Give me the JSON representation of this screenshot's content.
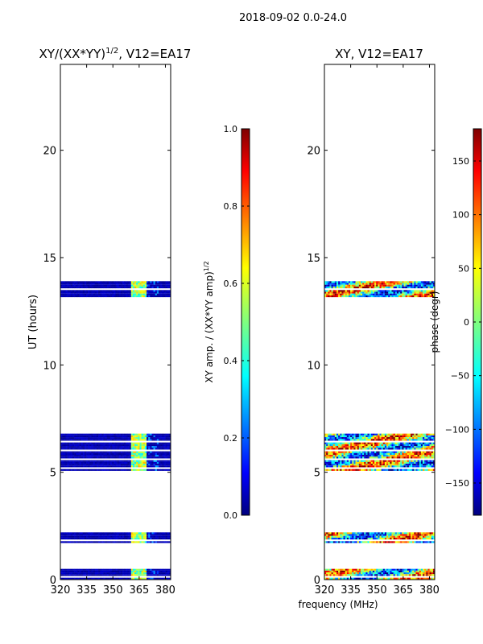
{
  "figure_title": "2018-09-02 0.0-24.0",
  "shared_xlabel": "frequency (MHz)",
  "chart_data": [
    {
      "type": "heatmap",
      "title": "XY/(XX*YY)",
      "title_sup": "1/2",
      "title_suffix": ", V12=EA17",
      "xlabel": "",
      "ylabel": "UT (hours)",
      "xlim": [
        320,
        383
      ],
      "ylim": [
        0,
        24
      ],
      "xticks": [
        320,
        335,
        350,
        365,
        380
      ],
      "yticks": [
        0,
        5,
        10,
        15,
        20
      ],
      "time_blocks_hours": [
        [
          0.0,
          0.5
        ],
        [
          1.7,
          2.2
        ],
        [
          5.1,
          6.8
        ],
        [
          13.2,
          13.9
        ]
      ],
      "colorbar": {
        "label": "XY amp. / (XX*YY amp)",
        "label_sup": "1/2",
        "range": [
          0.0,
          1.0
        ],
        "ticks": [
          "0.0",
          "0.2",
          "0.4",
          "0.6",
          "0.8",
          "1.0"
        ],
        "colormap": "jet"
      }
    },
    {
      "type": "heatmap",
      "title": "XY, V12=EA17",
      "xlabel": "frequency (MHz)",
      "ylabel": "",
      "xlim": [
        320,
        383
      ],
      "ylim": [
        0,
        24
      ],
      "xticks": [
        320,
        335,
        350,
        365,
        380
      ],
      "yticks": [
        0,
        5,
        10,
        15,
        20
      ],
      "time_blocks_hours": [
        [
          0.0,
          0.5
        ],
        [
          1.7,
          2.2
        ],
        [
          5.1,
          6.8
        ],
        [
          13.2,
          13.9
        ]
      ],
      "colorbar": {
        "label": "phase (degr)",
        "range": [
          -180,
          180
        ],
        "ticks": [
          "-150",
          "-100",
          "-50",
          "0",
          "50",
          "100",
          "150"
        ],
        "colormap": "jet"
      }
    }
  ]
}
